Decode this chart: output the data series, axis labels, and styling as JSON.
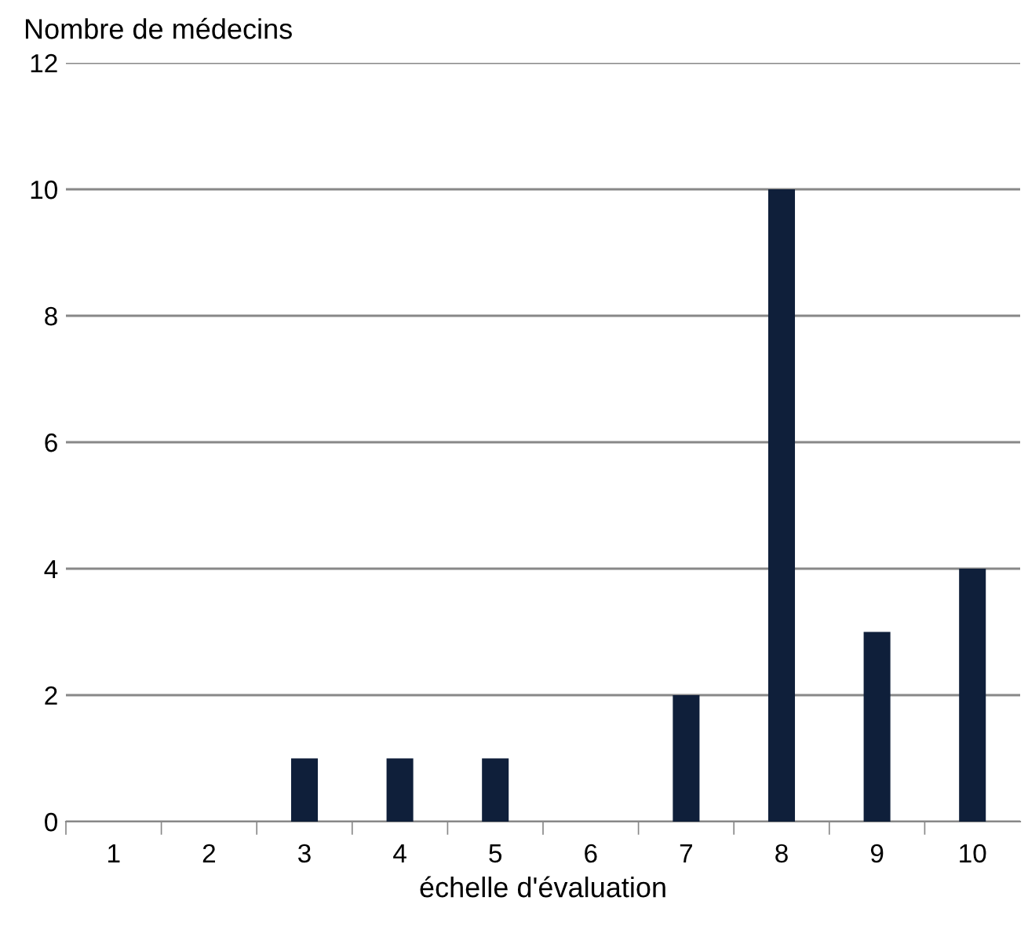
{
  "chart_data": {
    "type": "bar",
    "ylabel": "Nombre de médecins",
    "xlabel": "échelle d'évaluation",
    "categories": [
      "1",
      "2",
      "3",
      "4",
      "5",
      "6",
      "7",
      "8",
      "9",
      "10"
    ],
    "values": [
      0,
      0,
      1,
      1,
      1,
      0,
      2,
      10,
      3,
      4
    ],
    "color": "#0f1f3a",
    "ylim": [
      0,
      12
    ],
    "yticks": [
      0,
      2,
      4,
      6,
      8,
      10,
      12
    ],
    "grid": "y"
  }
}
